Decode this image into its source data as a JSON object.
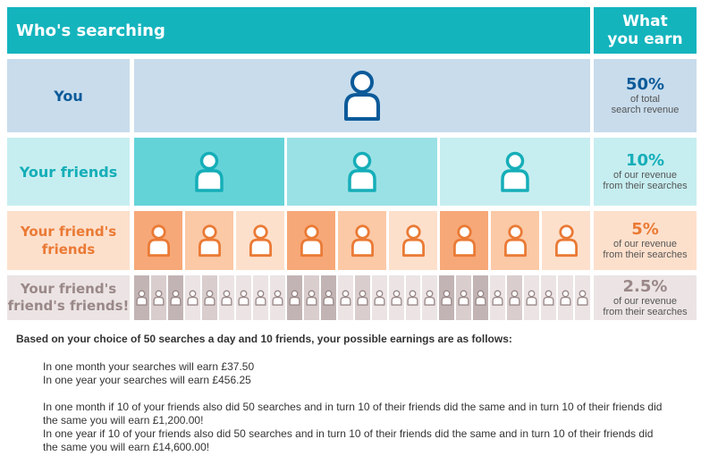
{
  "header": {
    "left_title": "Who's searching",
    "right_title_line1": "What",
    "right_title_line2": "you earn"
  },
  "rows": [
    {
      "label": "You",
      "pct": "50%",
      "sub1": "of total",
      "sub2": "search revenue"
    },
    {
      "label": "Your friends",
      "pct": "10%",
      "sub1": "of our revenue",
      "sub2": "from their searches"
    },
    {
      "label_line1": "Your friend's",
      "label_line2": "friends",
      "pct": "5%",
      "sub1": "of our revenue",
      "sub2": "from their searches"
    },
    {
      "label_line1": "Your friend's",
      "label_line2": "friend's friends!",
      "pct": "2.5%",
      "sub1": "of our revenue",
      "sub2": "from their searches"
    }
  ],
  "colors": {
    "row1_icon": "#0b5a99",
    "row2_blocks": [
      "#64d3d8",
      "#9ae1e5",
      "#c6eef0"
    ],
    "row2_icon": "#15aeb8",
    "row3_blocks": [
      "#f7a878",
      "#fbc9a6",
      "#fde0cc"
    ],
    "row3_icon": "#ea7a35",
    "row4_blocks": [
      "#c2b4b4",
      "#d9cdcd",
      "#ece4e4"
    ],
    "row4_icon": "#9a8888"
  },
  "earnings": {
    "lead": "Based on your choice of 50 searches a day and 10 friends, your possible earnings are as follows:",
    "line1": "In one month your searches will earn £37.50",
    "line2": "In one year your searches will earn £456.25",
    "line3": "In one month if 10 of your friends also did 50 searches and in turn 10 of their friends did the same and in turn 10 of their friends did",
    "line4": "the same you will earn £1,200.00!",
    "line5": "In one year if 10 of your friends also did 50 searches and in turn 10 of their friends did the same and in turn 10 of their friends did",
    "line6": "the same you will earn £14,600.00!"
  }
}
